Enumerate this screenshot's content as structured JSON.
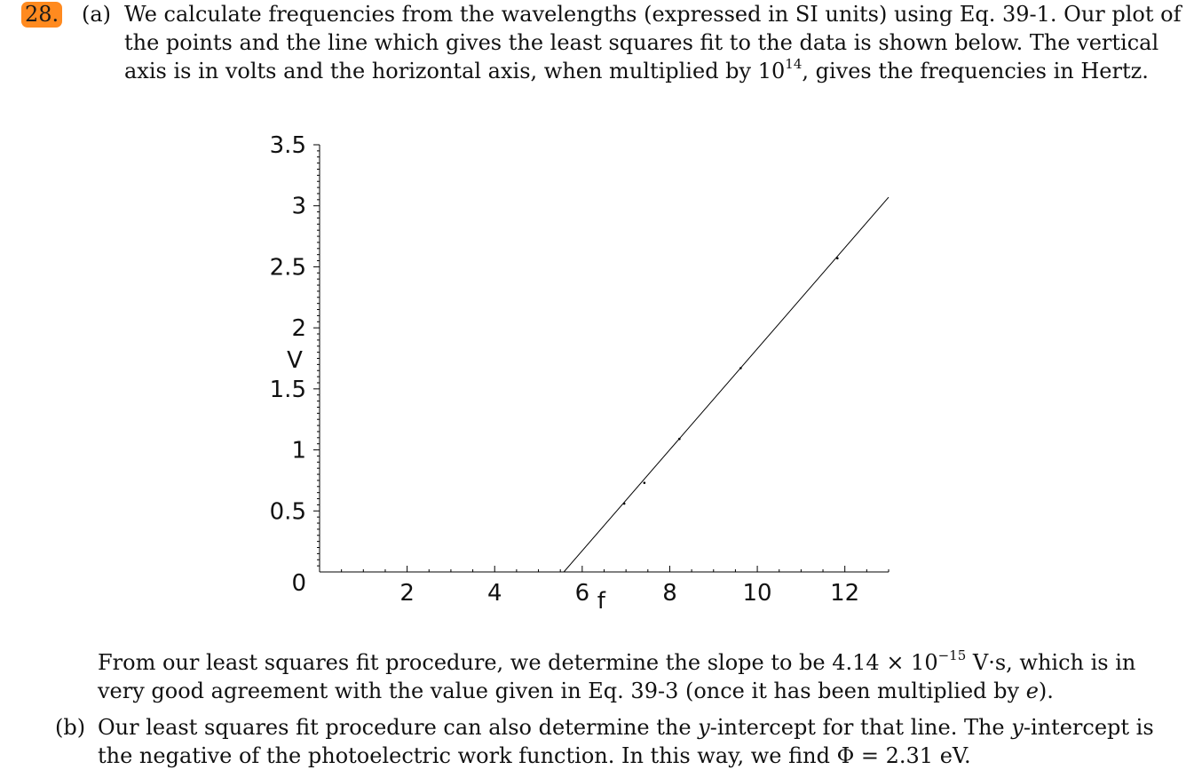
{
  "problem": {
    "number": "28.",
    "number_color": "#ff8a1f"
  },
  "part_a": {
    "label": "(a)",
    "lines": [
      "We calculate frequencies from the wavelengths (expressed in SI units) using Eq. 39-1. Our plot of",
      "the points and the line which gives the least squares fit to the data is shown below. The vertical"
    ],
    "line3_before": "axis is in volts and the horizontal axis, when multiplied by 10",
    "line3_sup": "14",
    "line3_after": ", gives the frequencies in Hertz."
  },
  "chart_data": {
    "type": "scatter",
    "xlabel": "f",
    "ylabel": "V",
    "xlim": [
      0,
      13
    ],
    "ylim": [
      0,
      3.5
    ],
    "xticks": [
      {
        "value": 2,
        "label": "2"
      },
      {
        "value": 4,
        "label": "4"
      },
      {
        "value": 6,
        "label": "6"
      },
      {
        "value": 8,
        "label": "8"
      },
      {
        "value": 10,
        "label": "10"
      },
      {
        "value": 12,
        "label": "12"
      }
    ],
    "yticks": [
      {
        "value": 0,
        "label": "0"
      },
      {
        "value": 0.5,
        "label": "0.5"
      },
      {
        "value": 1,
        "label": "1"
      },
      {
        "value": 1.5,
        "label": "1.5"
      },
      {
        "value": 2,
        "label": "2"
      },
      {
        "value": 2.5,
        "label": "2.5"
      },
      {
        "value": 3,
        "label": "3"
      },
      {
        "value": 3.5,
        "label": "3.5"
      }
    ],
    "series": [
      {
        "kind": "points",
        "x": [
          6.96,
          7.42,
          8.22,
          9.62,
          11.83
        ],
        "y": [
          0.56,
          0.73,
          1.09,
          1.67,
          2.57
        ]
      },
      {
        "kind": "fit_line",
        "x": [
          5.58,
          13.0
        ],
        "y": [
          0.0,
          3.07
        ]
      }
    ],
    "grid": false,
    "legend": "none",
    "line_color": "#000000"
  },
  "after_plot": {
    "line1_before": "From our least squares fit procedure, we determine the slope to be 4.14 × 10",
    "line1_sup": "−15",
    "line1_after": " V·s, which is in",
    "line2_before": "very good agreement with the value given in Eq. 39-3 (once it has been multiplied by ",
    "line2_e": "e",
    "line2_after": ")."
  },
  "part_b": {
    "label": "(b)",
    "line1_a": "Our least squares fit procedure can also determine the ",
    "line1_y1": "y",
    "line1_b": "-intercept for that line. The ",
    "line1_y2": "y",
    "line1_c": "-intercept is",
    "line2": "the negative of the photoelectric work function. In this way, we find Φ = 2.31 eV."
  }
}
